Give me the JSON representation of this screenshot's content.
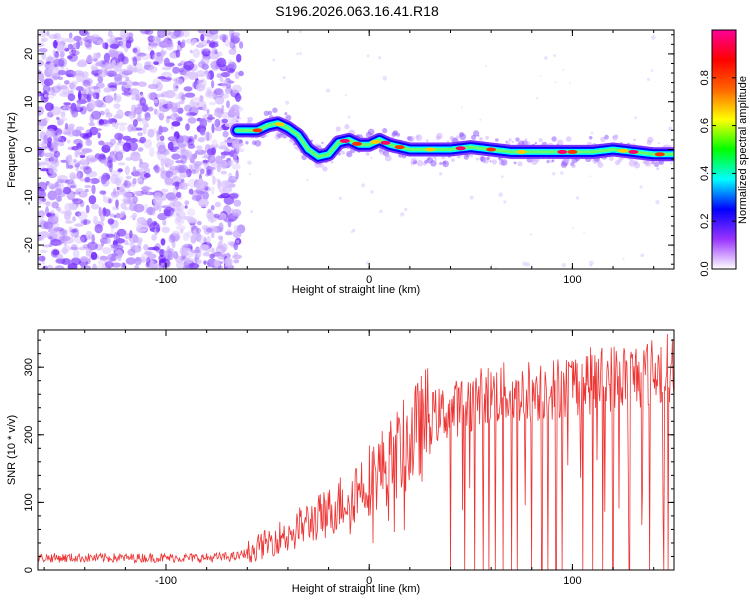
{
  "title": "S196.2026.063.16.41.R18",
  "chart_data": [
    {
      "type": "heatmap",
      "xlabel": "Height of straight line (km)",
      "ylabel": "Frequency (Hz)",
      "xlim": [
        -163,
        150
      ],
      "ylim": [
        -25,
        25
      ],
      "xticks": [
        -100,
        0,
        100
      ],
      "yticks": [
        -20,
        -10,
        0,
        10,
        20
      ],
      "noise_region_x": [
        -163,
        -65
      ],
      "signal_ridge": {
        "x": [
          -65,
          -60,
          -55,
          -50,
          -45,
          -40,
          -35,
          -30,
          -25,
          -20,
          -15,
          -10,
          -5,
          0,
          5,
          10,
          20,
          30,
          40,
          50,
          60,
          70,
          80,
          90,
          100,
          110,
          120,
          130,
          140,
          150
        ],
        "freq": [
          4,
          4,
          4,
          5,
          5.5,
          4.5,
          3,
          0,
          -1.5,
          -1,
          1.5,
          2,
          1,
          1,
          2,
          1,
          0,
          0,
          0,
          0.5,
          0,
          -0.5,
          -0.5,
          -0.5,
          -0.5,
          -0.5,
          0,
          -0.5,
          -1,
          -1
        ]
      },
      "colorbar": {
        "label": "Normalized spectral amplitude",
        "range": [
          0,
          1
        ],
        "ticks": [
          0.0,
          0.2,
          0.4,
          0.6,
          0.8
        ],
        "tick_labels": [
          "0.0",
          "0.2",
          "0.4",
          "0.6",
          "0.8"
        ],
        "colormap": [
          "#ffffff",
          "#9933ff",
          "#0000ff",
          "#00ffff",
          "#00ff00",
          "#ffff00",
          "#ff6600",
          "#ff0000",
          "#ff0099"
        ]
      }
    },
    {
      "type": "line",
      "xlabel": "Height of straight line (km)",
      "ylabel": "SNR (10 * v/v)",
      "xlim": [
        -163,
        150
      ],
      "ylim": [
        0,
        355
      ],
      "xticks": [
        -100,
        0,
        100
      ],
      "yticks": [
        0,
        100,
        200,
        300
      ],
      "color": "#ee3333",
      "trend": {
        "x": [
          -163,
          -120,
          -80,
          -65,
          -60,
          -50,
          -40,
          -30,
          -20,
          -10,
          0,
          10,
          20,
          30,
          40,
          50,
          60,
          70,
          80,
          90,
          100,
          110,
          120,
          130,
          140,
          150
        ],
        "y": [
          18,
          18,
          18,
          20,
          26,
          40,
          55,
          70,
          85,
          110,
          135,
          160,
          190,
          225,
          235,
          250,
          260,
          262,
          265,
          270,
          275,
          280,
          285,
          288,
          292,
          300
        ]
      },
      "dropouts_x": [
        40,
        47,
        52,
        56,
        59,
        62,
        66,
        70,
        73,
        80,
        85,
        88,
        92,
        95,
        105,
        110,
        115,
        120,
        128,
        138,
        145,
        147
      ]
    }
  ]
}
